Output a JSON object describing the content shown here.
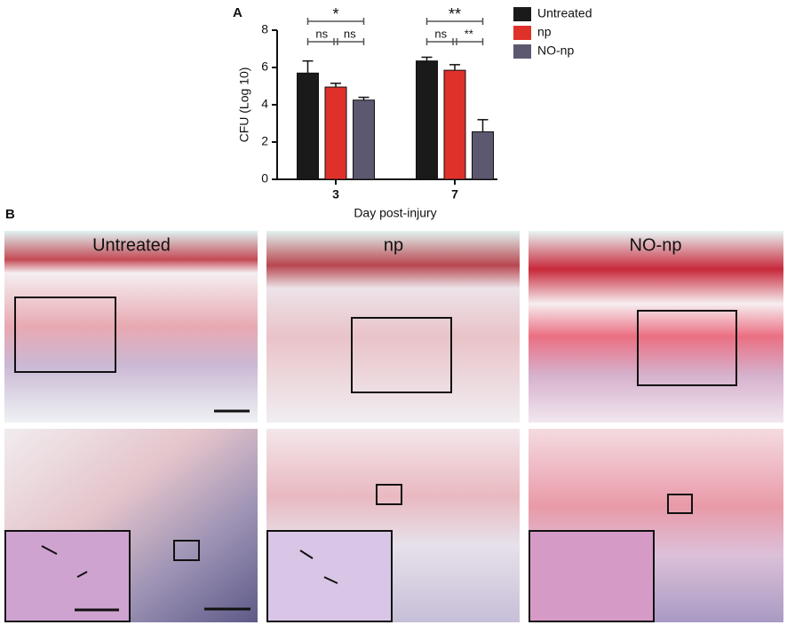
{
  "chart_data": {
    "type": "bar",
    "ylabel": "CFU (Log 10)",
    "xlabel": "Day post-injury",
    "categories": [
      "3",
      "7"
    ],
    "series": [
      {
        "name": "Untreated",
        "color": "#1a1a1a",
        "values": [
          5.7,
          6.35
        ],
        "errors": [
          0.65,
          0.2
        ]
      },
      {
        "name": "np",
        "color": "#e0302a",
        "values": [
          4.95,
          5.85
        ],
        "errors": [
          0.2,
          0.3
        ]
      },
      {
        "name": "NO-np",
        "color": "#5b5870",
        "values": [
          4.25,
          2.55
        ],
        "errors": [
          0.15,
          0.65
        ]
      }
    ],
    "ylim": [
      0,
      8
    ],
    "yticks": [
      0,
      2,
      4,
      6,
      8
    ],
    "significance": [
      [
        "*",
        "ns",
        "ns"
      ],
      [
        "**",
        "ns",
        "**"
      ]
    ]
  },
  "figure": {
    "panel_a": "A",
    "panel_b": "B",
    "image_titles": [
      "Untreated",
      "np",
      "NO-np"
    ]
  }
}
